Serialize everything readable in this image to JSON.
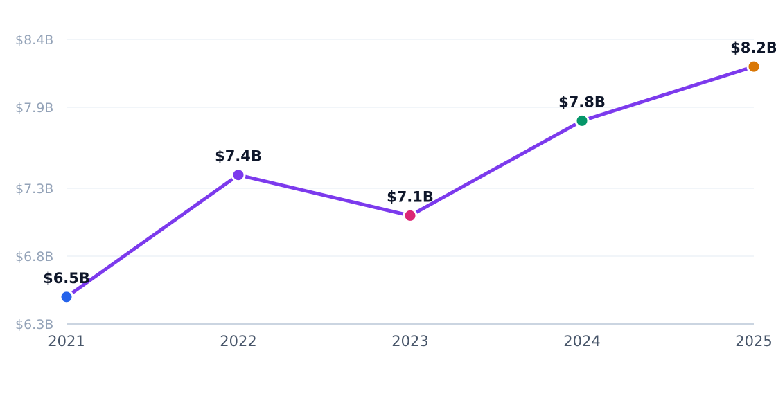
{
  "chart_data": {
    "type": "line",
    "categories": [
      "2021",
      "2022",
      "2023",
      "2024",
      "2025"
    ],
    "series": [
      {
        "values": [
          6.5,
          7.4,
          7.1,
          7.8,
          8.2
        ],
        "value_labels": [
          "$6.5B",
          "$7.4B",
          "$7.1B",
          "$7.8B",
          "$8.2B"
        ],
        "line_color": "#7c3aed",
        "point_colors": [
          "#2563eb",
          "#7c3aed",
          "#db2777",
          "#059669",
          "#d97706"
        ]
      }
    ],
    "yticks": [
      {
        "value": 6.3,
        "label": "$6.3B"
      },
      {
        "value": 6.8,
        "label": "$6.8B"
      },
      {
        "value": 7.3,
        "label": "$7.3B"
      },
      {
        "value": 7.9,
        "label": "$7.9B"
      },
      {
        "value": 8.4,
        "label": "$8.4B"
      }
    ],
    "ylim": [
      6.3,
      8.4
    ],
    "title": "",
    "xlabel": "",
    "ylabel": "",
    "grid": true,
    "legend": "none",
    "colors": {
      "grid": "#f1f5f9",
      "axis": "#cbd5e1",
      "tick_text": "#94a3b8",
      "category_text": "#475569",
      "label_text": "#0f172a"
    }
  }
}
